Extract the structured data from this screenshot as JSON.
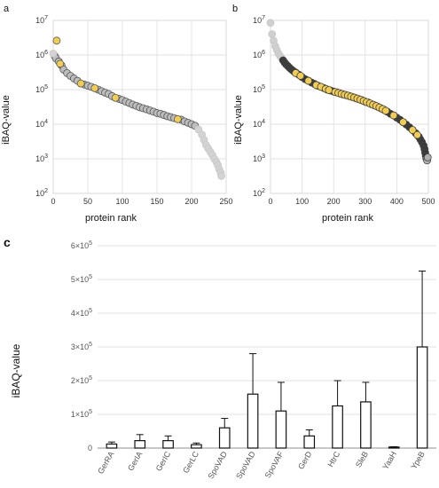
{
  "chart_data": [
    {
      "panel": "a",
      "type": "scatter",
      "xlabel": "protein rank",
      "ylabel": "iBAQ-value",
      "xlim": [
        0,
        250
      ],
      "ylim_log10": [
        2,
        7
      ],
      "log_y": true,
      "xticks": [
        "0",
        "50",
        "100",
        "150",
        "200",
        "250"
      ],
      "yticks": [
        "10",
        "10",
        "10",
        "10",
        "10",
        "10"
      ],
      "ytick_exponents": [
        "2",
        "3",
        "4",
        "5",
        "6",
        "7"
      ],
      "grid": true,
      "colors": {
        "yellow": "#f2cd4f",
        "gray": "#bdbdbd",
        "light_gray": "#d3d3d3",
        "edge": "#555555"
      },
      "series": [
        {
          "points": [
            [
              5,
              2600000.0
            ],
            [
              10,
              560000.0
            ],
            [
              40,
              150000.0
            ],
            [
              60,
              110000.0
            ],
            [
              90,
              58000.0
            ],
            [
              180,
              14000.0
            ]
          ],
          "color": "yellow"
        },
        {
          "points": [
            [
              2,
              950000.0
            ],
            [
              4,
              800000.0
            ],
            [
              8,
              650000.0
            ],
            [
              12,
              500000.0
            ],
            [
              15,
              380000.0
            ],
            [
              20,
              300000.0
            ],
            [
              25,
              250000.0
            ],
            [
              30,
              210000.0
            ],
            [
              35,
              180000.0
            ],
            [
              45,
              140000.0
            ],
            [
              50,
              130000.0
            ],
            [
              55,
              120000.0
            ],
            [
              65,
              100000.0
            ],
            [
              70,
              90000.0
            ],
            [
              75,
              82000.0
            ],
            [
              80,
              75000.0
            ],
            [
              85,
              65000.0
            ],
            [
              95,
              54000.0
            ],
            [
              100,
              50000.0
            ],
            [
              105,
              45000.0
            ],
            [
              110,
              41000.0
            ],
            [
              115,
              37000.0
            ],
            [
              120,
              34000.0
            ],
            [
              125,
              31000.0
            ],
            [
              130,
              29000.0
            ],
            [
              135,
              27000.0
            ],
            [
              140,
              25000.0
            ],
            [
              145,
              23000.0
            ],
            [
              150,
              21000.0
            ],
            [
              155,
              20000.0
            ],
            [
              160,
              18500.0
            ],
            [
              165,
              17000.0
            ],
            [
              170,
              16000.0
            ],
            [
              175,
              15000.0
            ],
            [
              185,
              13500.0
            ],
            [
              190,
              12000.0
            ],
            [
              195,
              11000.0
            ],
            [
              200,
              10000.0
            ],
            [
              205,
              9000.0
            ]
          ],
          "color": "gray"
        },
        {
          "points": [
            [
              0,
              1100000.0
            ],
            [
              210,
              7000.0
            ],
            [
              215,
              5000.0
            ],
            [
              218,
              3500.0
            ],
            [
              221,
              2500.0
            ],
            [
              224,
              2000.0
            ],
            [
              227,
              1600.0
            ],
            [
              230,
              1300.0
            ],
            [
              233,
              1000.0
            ],
            [
              236,
              800.0
            ],
            [
              238,
              650.0
            ],
            [
              240,
              500.0
            ],
            [
              242,
              400.0
            ],
            [
              243,
              320.0
            ]
          ],
          "color": "light_gray"
        }
      ]
    },
    {
      "panel": "b",
      "type": "scatter",
      "xlabel": "protein rank",
      "ylabel": "iBAQ-value",
      "xlim": [
        0,
        500
      ],
      "ylim_log10": [
        2,
        7
      ],
      "log_y": true,
      "xticks": [
        "0",
        "100",
        "200",
        "300",
        "400",
        "500"
      ],
      "yticks": [
        "10",
        "10",
        "10",
        "10",
        "10",
        "10"
      ],
      "ytick_exponents": [
        "2",
        "3",
        "4",
        "5",
        "6",
        "7"
      ],
      "grid": true,
      "colors": {
        "yellow": "#f2cd4f",
        "dark": "#3a3a3a",
        "gray": "#b0b0b0",
        "light_gray": "#d0d0d0",
        "edge": "#444444"
      },
      "series": [
        {
          "points": [
            [
              0,
              8500000.0
            ],
            [
              5,
              4000000.0
            ],
            [
              10,
              2600000.0
            ],
            [
              15,
              1800000.0
            ],
            [
              20,
              1400000.0
            ],
            [
              25,
              1100000.0
            ],
            [
              30,
              950000.0
            ],
            [
              35,
              820000.0
            ]
          ],
          "color": "light_gray"
        },
        {
          "points": [
            [
              40,
              700000.0
            ],
            [
              45,
              600000.0
            ],
            [
              50,
              530000.0
            ],
            [
              55,
              480000.0
            ],
            [
              60,
              430000.0
            ],
            [
              65,
              390000.0
            ],
            [
              70,
              360000.0
            ],
            [
              75,
              330000.0
            ],
            [
              80,
              310000.0
            ],
            [
              90,
              270000.0
            ],
            [
              100,
              230000.0
            ],
            [
              110,
              200000.0
            ],
            [
              120,
              180000.0
            ],
            [
              130,
              160000.0
            ],
            [
              140,
              145000.0
            ],
            [
              150,
              130000.0
            ],
            [
              160,
              120000.0
            ],
            [
              170,
              110000.0
            ],
            [
              180,
              100000.0
            ],
            [
              190,
              94000.0
            ],
            [
              200,
              88000.0
            ],
            [
              210,
              83000.0
            ],
            [
              220,
              78000.0
            ],
            [
              230,
              73000.0
            ],
            [
              240,
              69000.0
            ],
            [
              250,
              65000.0
            ],
            [
              260,
              61000.0
            ],
            [
              270,
              57000.0
            ],
            [
              280,
              53000.0
            ],
            [
              290,
              49000.0
            ],
            [
              300,
              45000.0
            ],
            [
              310,
              42000.0
            ],
            [
              320,
              38000.0
            ],
            [
              330,
              35000.0
            ],
            [
              340,
              32000.0
            ],
            [
              350,
              29000.0
            ],
            [
              360,
              26000.0
            ],
            [
              370,
              23000.0
            ],
            [
              380,
              20000.0
            ],
            [
              390,
              18000.0
            ],
            [
              400,
              15500.0
            ],
            [
              410,
              13500.0
            ],
            [
              420,
              11500.0
            ],
            [
              430,
              9800.0
            ],
            [
              440,
              8200.0
            ],
            [
              450,
              6800.0
            ],
            [
              460,
              5500.0
            ],
            [
              470,
              4300.0
            ],
            [
              475,
              3600.0
            ],
            [
              480,
              3000.0
            ],
            [
              485,
              2400.0
            ],
            [
              488,
              1900.0
            ],
            [
              490,
              1500.0
            ],
            [
              492,
              1200.0
            ]
          ],
          "color": "dark"
        },
        {
          "points": [
            [
              80,
              300000.0
            ],
            [
              95,
              250000.0
            ],
            [
              120,
              180000.0
            ],
            [
              145,
              135000.0
            ],
            [
              160,
              120000.0
            ],
            [
              175,
              105000.0
            ],
            [
              185,
              97000.0
            ],
            [
              205,
              85000.0
            ],
            [
              215,
              80000.0
            ],
            [
              225,
              75000.0
            ],
            [
              235,
              71000.0
            ],
            [
              245,
              67000.0
            ],
            [
              255,
              63000.0
            ],
            [
              265,
              59000.0
            ],
            [
              275,
              55000.0
            ],
            [
              285,
              51000.0
            ],
            [
              295,
              47000.0
            ],
            [
              305,
              43500.0
            ],
            [
              315,
              40000.0
            ],
            [
              325,
              36500.0
            ],
            [
              335,
              33500.0
            ],
            [
              345,
              30500.0
            ],
            [
              355,
              27500.0
            ],
            [
              365,
              24500.0
            ],
            [
              390,
              18000.0
            ],
            [
              420,
              11500.0
            ],
            [
              450,
              6800.0
            ],
            [
              465,
              4900.0
            ]
          ],
          "color": "yellow"
        },
        {
          "points": [
            [
              494,
              1000.0
            ],
            [
              496,
              900.0
            ],
            [
              498,
              1100.0
            ]
          ],
          "color": "gray"
        }
      ]
    },
    {
      "panel": "c",
      "type": "bar",
      "ylabel": "iBAQ-value",
      "categories": [
        "GerRA",
        "GerIA",
        "GerIC",
        "GerLC",
        "SpoVAD",
        "SpoVAD",
        "SpoVAF",
        "GerD",
        "HtrC",
        "SleB",
        "YaaH",
        "YpeB"
      ],
      "values": [
        12000,
        22000,
        22000,
        10000,
        60000,
        160000,
        110000,
        36000,
        125000,
        137000,
        3000,
        300000
      ],
      "errors": [
        6000,
        18000,
        14000,
        5000,
        28000,
        120000,
        85000,
        18000,
        75000,
        58000,
        1000,
        225000
      ],
      "ylim": [
        0,
        600000
      ],
      "ytick_values": [
        0,
        100000,
        200000,
        300000,
        400000,
        500000,
        600000
      ],
      "ytick_mantissas": [
        "0",
        "1×10",
        "2×10",
        "3×10",
        "4×10",
        "5×10",
        "6×10"
      ],
      "ytick_exponents": [
        "",
        "5",
        "5",
        "5",
        "5",
        "5",
        "5"
      ],
      "grid": true
    }
  ]
}
